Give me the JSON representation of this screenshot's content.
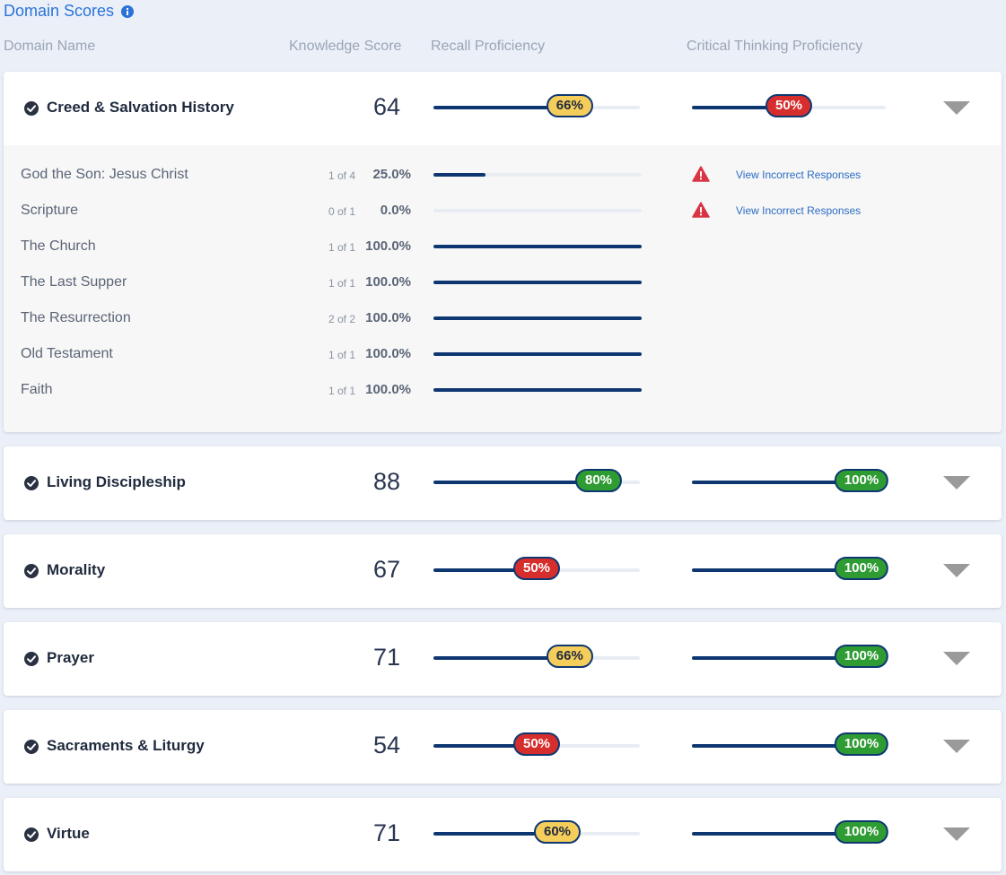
{
  "header": {
    "title": "Domain Scores",
    "columns": {
      "domain_name": "Domain Name",
      "knowledge_score": "Knowledge Score",
      "recall": "Recall Proficiency",
      "critical_thinking": "Critical Thinking Proficiency"
    }
  },
  "colors": {
    "accent": "#2b73d9",
    "bar": "#0e3772",
    "yellow": "#f5cd5b",
    "red": "#d62d2d",
    "green": "#2e9b33"
  },
  "domains": [
    {
      "name": "Creed & Salvation History",
      "score": "64",
      "recall": {
        "label": "66%",
        "fraction": 0.66,
        "color": "yellow"
      },
      "critical": {
        "label": "50%",
        "fraction": 0.5,
        "color": "red"
      },
      "expanded": true,
      "subdomains": [
        {
          "name": "God the Son: Jesus Christ",
          "fraction_text": "1 of 4",
          "percent": "25.0%",
          "fraction": 0.25,
          "link": "View Incorrect Responses"
        },
        {
          "name": "Scripture",
          "fraction_text": "0 of 1",
          "percent": "0.0%",
          "fraction": 0.0,
          "link": "View Incorrect Responses"
        },
        {
          "name": "The Church",
          "fraction_text": "1 of 1",
          "percent": "100.0%",
          "fraction": 1.0
        },
        {
          "name": "The Last Supper",
          "fraction_text": "1 of 1",
          "percent": "100.0%",
          "fraction": 1.0
        },
        {
          "name": "The Resurrection",
          "fraction_text": "2 of 2",
          "percent": "100.0%",
          "fraction": 1.0
        },
        {
          "name": "Old Testament",
          "fraction_text": "1 of 1",
          "percent": "100.0%",
          "fraction": 1.0
        },
        {
          "name": "Faith",
          "fraction_text": "1 of 1",
          "percent": "100.0%",
          "fraction": 1.0
        }
      ]
    },
    {
      "name": "Living Discipleship",
      "score": "88",
      "recall": {
        "label": "80%",
        "fraction": 0.8,
        "color": "green"
      },
      "critical": {
        "label": "100%",
        "fraction": 1.0,
        "color": "green"
      }
    },
    {
      "name": "Morality",
      "score": "67",
      "recall": {
        "label": "50%",
        "fraction": 0.5,
        "color": "red"
      },
      "critical": {
        "label": "100%",
        "fraction": 1.0,
        "color": "green"
      }
    },
    {
      "name": "Prayer",
      "score": "71",
      "recall": {
        "label": "66%",
        "fraction": 0.66,
        "color": "yellow"
      },
      "critical": {
        "label": "100%",
        "fraction": 1.0,
        "color": "green"
      }
    },
    {
      "name": "Sacraments & Liturgy",
      "score": "54",
      "recall": {
        "label": "50%",
        "fraction": 0.5,
        "color": "red"
      },
      "critical": {
        "label": "100%",
        "fraction": 1.0,
        "color": "green"
      }
    },
    {
      "name": "Virtue",
      "score": "71",
      "recall": {
        "label": "60%",
        "fraction": 0.6,
        "color": "yellow"
      },
      "critical": {
        "label": "100%",
        "fraction": 1.0,
        "color": "green"
      }
    }
  ]
}
